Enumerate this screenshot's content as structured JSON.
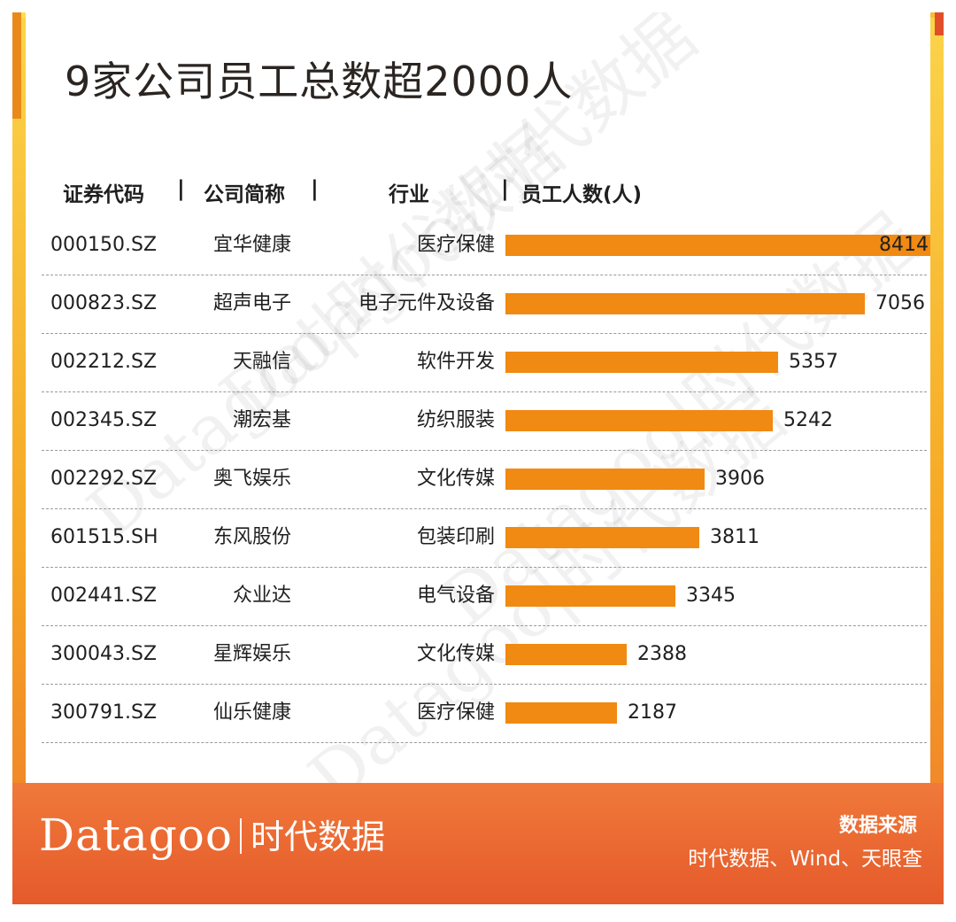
{
  "title": "9家公司员工总数超2000人",
  "headers": {
    "code": "证券代码",
    "name": "公司简称",
    "industry": "行业",
    "employees": "员工人数(人)"
  },
  "header_separator": "|",
  "watermark": "Datagoo|时代数据",
  "footer": {
    "logo_en": "Datagoo",
    "logo_cn": "时代数据",
    "source_title": "数据来源",
    "source_text": "时代数据、Wind、天眼查"
  },
  "colors": {
    "bar": "#f08a12",
    "frame_top": "#fbd44a",
    "footer": "#e55a2b",
    "text": "#1f1f1f"
  },
  "chart_data": {
    "type": "bar",
    "orientation": "horizontal",
    "title": "9家公司员工总数超2000人",
    "xlim": [
      0,
      8414
    ],
    "series": [
      {
        "name": "员工人数(人)",
        "values": [
          8414,
          7056,
          5357,
          5242,
          3906,
          3811,
          3345,
          2388,
          2187
        ]
      }
    ],
    "rows": [
      {
        "code": "000150.SZ",
        "name": "宜华健康",
        "industry": "医疗保健",
        "value": 8414
      },
      {
        "code": "000823.SZ",
        "name": "超声电子",
        "industry": "电子元件及设备",
        "value": 7056
      },
      {
        "code": "002212.SZ",
        "name": "天融信",
        "industry": "软件开发",
        "value": 5357
      },
      {
        "code": "002345.SZ",
        "name": "潮宏基",
        "industry": "纺织服装",
        "value": 5242
      },
      {
        "code": "002292.SZ",
        "name": "奥飞娱乐",
        "industry": "文化传媒",
        "value": 3906
      },
      {
        "code": "601515.SH",
        "name": "东风股份",
        "industry": "包装印刷",
        "value": 3811
      },
      {
        "code": "002441.SZ",
        "name": "众业达",
        "industry": "电气设备",
        "value": 3345
      },
      {
        "code": "300043.SZ",
        "name": "星辉娱乐",
        "industry": "文化传媒",
        "value": 2388
      },
      {
        "code": "300791.SZ",
        "name": "仙乐健康",
        "industry": "医疗保健",
        "value": 2187
      }
    ]
  }
}
